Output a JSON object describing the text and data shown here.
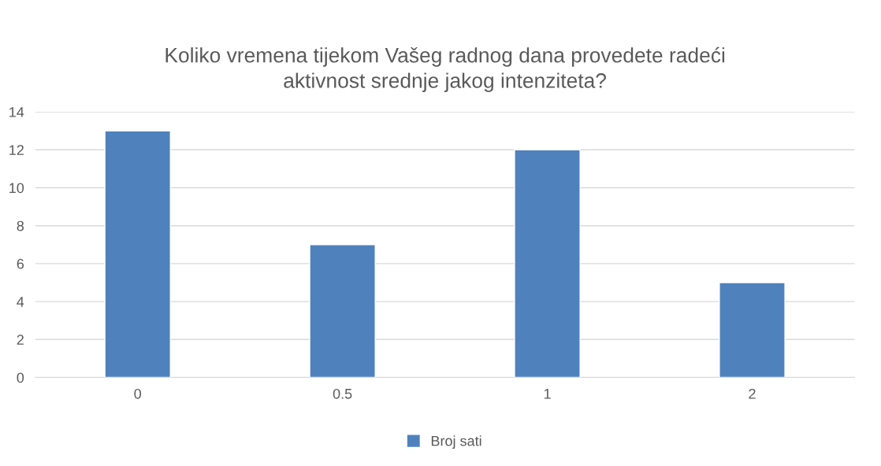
{
  "chart_data": {
    "type": "bar",
    "title": "Koliko vremena tijekom Vašeg radnog dana provedete radeći\naktivnost srednje jakog intenziteta?",
    "categories": [
      "0",
      "0.5",
      "1",
      "2"
    ],
    "series": [
      {
        "name": "Broj sati",
        "color": "#4f81bd",
        "values": [
          13,
          7,
          12,
          5
        ]
      }
    ],
    "ylim": [
      0,
      14
    ],
    "yticks": [
      0,
      2,
      4,
      6,
      8,
      10,
      12,
      14
    ],
    "grid": "y",
    "legend": "bottom"
  }
}
